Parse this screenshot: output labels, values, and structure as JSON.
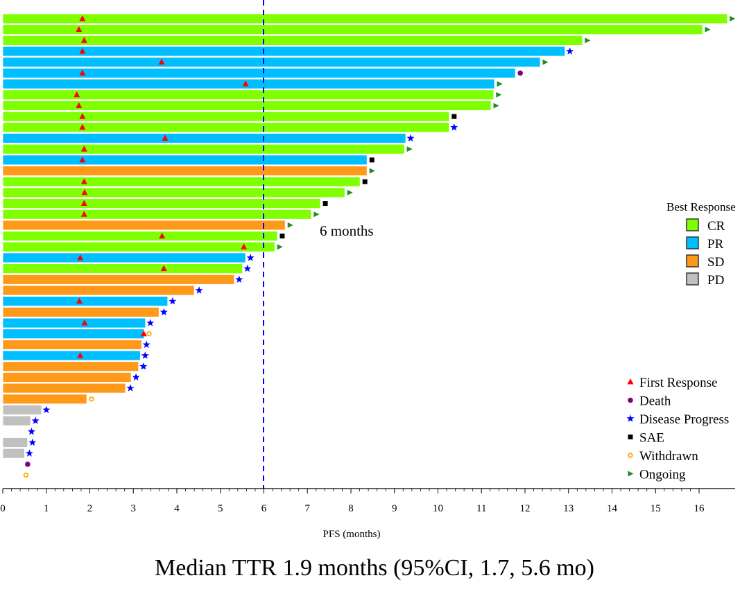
{
  "chart_data": {
    "type": "swimmer-bar",
    "xlabel": "PFS (months)",
    "caption": "Median TTR 1.9 months (95%CI, 1.7, 5.6 mo)",
    "xlim": [
      0,
      17
    ],
    "xticks": [
      "0",
      "1",
      "2",
      "3",
      "4",
      "5",
      "6",
      "7",
      "8",
      "9",
      "10",
      "11",
      "12",
      "13",
      "14",
      "15",
      "16"
    ],
    "reference_line": {
      "value": 6,
      "label": "6 months",
      "color": "#0000ff"
    },
    "response_colors": {
      "CR": "#7fff00",
      "PR": "#00bfff",
      "SD": "#ff991a",
      "PD": "#c0c0c0"
    },
    "event_colors": {
      "First Response": "#ff0000",
      "Death": "#800080",
      "Disease Progress": "#0000ff",
      "SAE": "#000000",
      "Withdrawn": "#ffa500",
      "Ongoing": "#228b22"
    },
    "legend_response_title": "Best Response",
    "legend_response": [
      "CR",
      "PR",
      "SD",
      "PD"
    ],
    "legend_events": [
      "First Response",
      "Death",
      "Disease Progress",
      "SAE",
      "Withdrawn",
      "Ongoing"
    ],
    "rows": [
      {
        "resp": "CR",
        "pfs": 16.65,
        "fr": 1.83,
        "event": "Ongoing"
      },
      {
        "resp": "CR",
        "pfs": 16.08,
        "fr": 1.75,
        "event": "Ongoing"
      },
      {
        "resp": "CR",
        "pfs": 13.32,
        "fr": 1.87,
        "event": "Ongoing"
      },
      {
        "resp": "PR",
        "pfs": 12.92,
        "fr": 1.83,
        "event": "Disease Progress"
      },
      {
        "resp": "PR",
        "pfs": 12.35,
        "fr": 3.65,
        "event": "Ongoing"
      },
      {
        "resp": "PR",
        "pfs": 11.78,
        "fr": 1.83,
        "event": "Death"
      },
      {
        "resp": "PR",
        "pfs": 11.3,
        "fr": 5.58,
        "event": "Ongoing"
      },
      {
        "resp": "CR",
        "pfs": 11.28,
        "fr": 1.7,
        "event": "Ongoing"
      },
      {
        "resp": "CR",
        "pfs": 11.22,
        "fr": 1.75,
        "event": "Ongoing"
      },
      {
        "resp": "CR",
        "pfs": 10.26,
        "fr": 1.83,
        "event": "SAE"
      },
      {
        "resp": "CR",
        "pfs": 10.26,
        "fr": 1.83,
        "event": "Disease Progress"
      },
      {
        "resp": "PR",
        "pfs": 9.26,
        "fr": 3.73,
        "event": "Disease Progress"
      },
      {
        "resp": "CR",
        "pfs": 9.23,
        "fr": 1.87,
        "event": "Ongoing"
      },
      {
        "resp": "PR",
        "pfs": 8.37,
        "fr": 1.83,
        "event": "SAE"
      },
      {
        "resp": "SD",
        "pfs": 8.37,
        "fr": null,
        "event": "Ongoing"
      },
      {
        "resp": "CR",
        "pfs": 8.21,
        "fr": 1.87,
        "event": "SAE"
      },
      {
        "resp": "CR",
        "pfs": 7.86,
        "fr": 1.88,
        "event": "Ongoing"
      },
      {
        "resp": "CR",
        "pfs": 7.3,
        "fr": 1.87,
        "event": "SAE"
      },
      {
        "resp": "CR",
        "pfs": 7.09,
        "fr": 1.87,
        "event": "Ongoing"
      },
      {
        "resp": "SD",
        "pfs": 6.49,
        "fr": null,
        "event": "Ongoing"
      },
      {
        "resp": "CR",
        "pfs": 6.31,
        "fr": 3.66,
        "event": "SAE"
      },
      {
        "resp": "CR",
        "pfs": 6.25,
        "fr": 5.54,
        "event": "Ongoing"
      },
      {
        "resp": "PR",
        "pfs": 5.58,
        "fr": 1.78,
        "event": "Disease Progress"
      },
      {
        "resp": "CR",
        "pfs": 5.51,
        "fr": 3.7,
        "event": "Disease Progress"
      },
      {
        "resp": "SD",
        "pfs": 5.32,
        "fr": null,
        "event": "Disease Progress"
      },
      {
        "resp": "SD",
        "pfs": 4.4,
        "fr": null,
        "event": "Disease Progress"
      },
      {
        "resp": "PR",
        "pfs": 3.79,
        "fr": 1.76,
        "event": "Disease Progress"
      },
      {
        "resp": "SD",
        "pfs": 3.59,
        "fr": null,
        "event": "Disease Progress"
      },
      {
        "resp": "PR",
        "pfs": 3.28,
        "fr": 1.88,
        "event": "Disease Progress"
      },
      {
        "resp": "PR",
        "pfs": 3.25,
        "fr": 3.24,
        "event": "Withdrawn"
      },
      {
        "resp": "SD",
        "pfs": 3.19,
        "fr": null,
        "event": "Disease Progress"
      },
      {
        "resp": "PR",
        "pfs": 3.16,
        "fr": 1.78,
        "event": "Disease Progress"
      },
      {
        "resp": "SD",
        "pfs": 3.12,
        "fr": null,
        "event": "Disease Progress"
      },
      {
        "resp": "SD",
        "pfs": 2.95,
        "fr": null,
        "event": "Disease Progress"
      },
      {
        "resp": "SD",
        "pfs": 2.82,
        "fr": null,
        "event": "Disease Progress"
      },
      {
        "resp": "SD",
        "pfs": 1.93,
        "fr": null,
        "event": "Withdrawn"
      },
      {
        "resp": "PD",
        "pfs": 0.89,
        "fr": null,
        "event": "Disease Progress"
      },
      {
        "resp": "PD",
        "pfs": 0.64,
        "fr": null,
        "event": "Disease Progress"
      },
      {
        "resp": "PD",
        "pfs": 0.55,
        "fr": null,
        "event": "Disease Progress",
        "no_bar": true
      },
      {
        "resp": "PD",
        "pfs": 0.57,
        "fr": null,
        "event": "Disease Progress"
      },
      {
        "resp": "PD",
        "pfs": 0.5,
        "fr": null,
        "event": "Disease Progress"
      },
      {
        "resp": "PD",
        "pfs": 0.46,
        "fr": null,
        "event": "Death",
        "no_bar": true
      },
      {
        "resp": "PD",
        "pfs": 0.42,
        "fr": null,
        "event": "Withdrawn",
        "no_bar": true
      }
    ]
  }
}
